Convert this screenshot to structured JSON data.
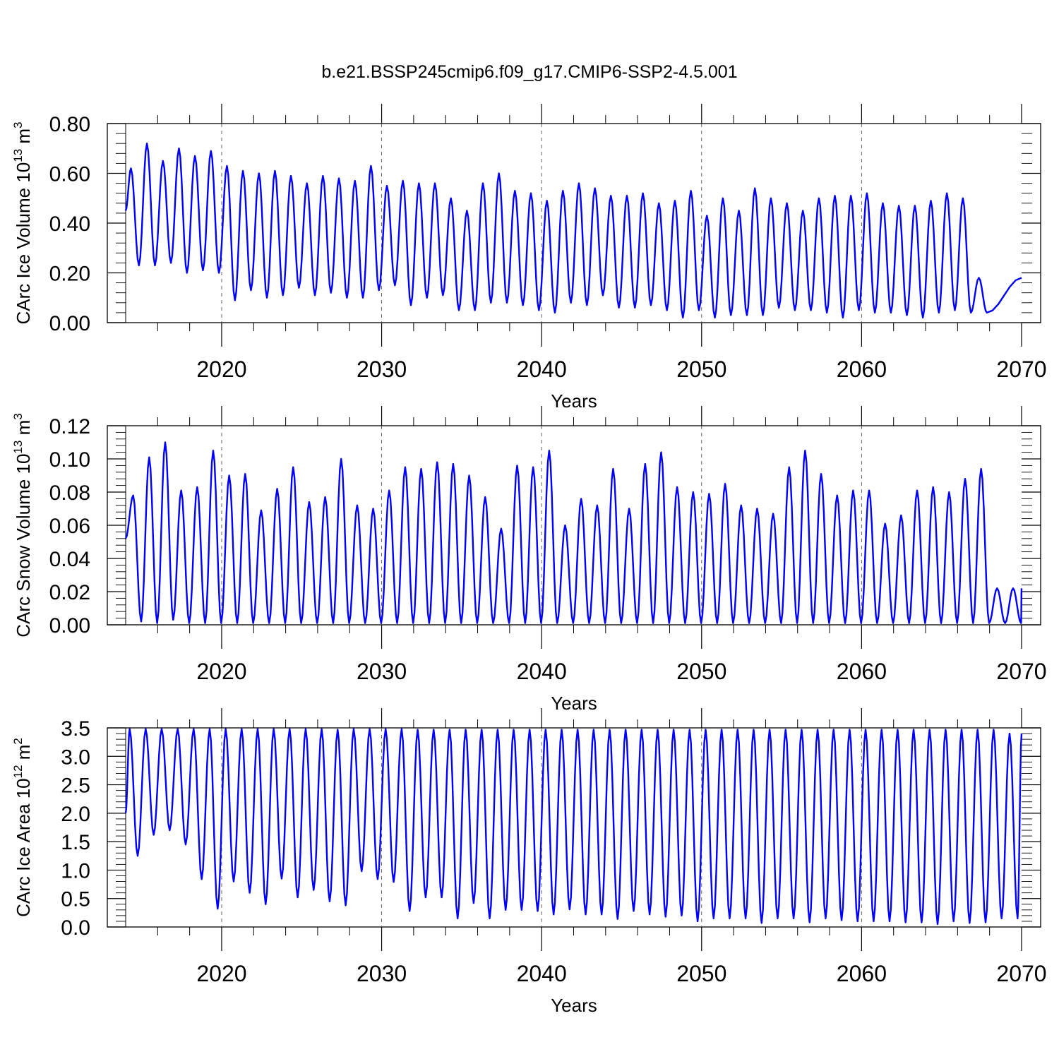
{
  "figure": {
    "title": "b.e21.BSSP245cmip6.f09_g17.CMIP6-SSP2-4.5.001"
  },
  "chart_data": [
    {
      "type": "line",
      "title": "b.e21.BSSP245cmip6.f09_g17.CMIP6-SSP2-4.5.001",
      "xlabel": "Years",
      "ylabel_text": "CArc Ice Volume 10",
      "ylabel_exp": "13",
      "ylabel_unit": " m",
      "ylabel_unit_exp": "3",
      "xlim": [
        2014,
        2070
      ],
      "ylim": [
        0,
        0.8
      ],
      "yticks": [
        0.0,
        0.2,
        0.4,
        0.6,
        0.8
      ],
      "ytick_labels": [
        "0.00",
        "0.20",
        "0.40",
        "0.60",
        "0.80"
      ],
      "xticks": [
        2020,
        2030,
        2040,
        2050,
        2060,
        2070
      ],
      "xtick_labels": [
        "2020",
        "2030",
        "2040",
        "2050",
        "2060",
        "2070"
      ],
      "grid": "vertical dashed at decades",
      "color": "#0000ff",
      "series": [
        {
          "start_x": 2014.0,
          "phase_peak": 0.33,
          "max": [
            0.62,
            0.72,
            0.65,
            0.7,
            0.67,
            0.69,
            0.63,
            0.61,
            0.6,
            0.61,
            0.59,
            0.56,
            0.59,
            0.58,
            0.57,
            0.63,
            0.55,
            0.57,
            0.56,
            0.56,
            0.5,
            0.45,
            0.56,
            0.6,
            0.53,
            0.52,
            0.49,
            0.53,
            0.56,
            0.54,
            0.51,
            0.51,
            0.52,
            0.48,
            0.49,
            0.53,
            0.43,
            0.5,
            0.45,
            0.54,
            0.5,
            0.48,
            0.45,
            0.5,
            0.51,
            0.51,
            0.52,
            0.48,
            0.47,
            0.47,
            0.49,
            0.52,
            0.5,
            0.18
          ],
          "min": [
            0.45,
            0.23,
            0.23,
            0.24,
            0.2,
            0.21,
            0.2,
            0.09,
            0.13,
            0.1,
            0.11,
            0.14,
            0.11,
            0.12,
            0.1,
            0.1,
            0.13,
            0.15,
            0.07,
            0.1,
            0.11,
            0.05,
            0.05,
            0.08,
            0.08,
            0.07,
            0.05,
            0.04,
            0.08,
            0.07,
            0.11,
            0.06,
            0.06,
            0.07,
            0.05,
            0.02,
            0.05,
            0.02,
            0.03,
            0.03,
            0.03,
            0.06,
            0.05,
            0.05,
            0.04,
            0.02,
            0.05,
            0.04,
            0.04,
            0.03,
            0.02,
            0.04,
            0.05,
            0.04
          ]
        }
      ]
    },
    {
      "type": "line",
      "xlabel": "Years",
      "ylabel_text": "CArc Snow Volume 10",
      "ylabel_exp": "13",
      "ylabel_unit": " m",
      "ylabel_unit_exp": "3",
      "xlim": [
        2014,
        2070
      ],
      "ylim": [
        0,
        0.12
      ],
      "yticks": [
        0.0,
        0.02,
        0.04,
        0.06,
        0.08,
        0.1,
        0.12
      ],
      "ytick_labels": [
        "0.00",
        "0.02",
        "0.04",
        "0.06",
        "0.08",
        "0.10",
        "0.12"
      ],
      "xticks": [
        2020,
        2030,
        2040,
        2050,
        2060,
        2070
      ],
      "xtick_labels": [
        "2020",
        "2030",
        "2040",
        "2050",
        "2060",
        "2070"
      ],
      "grid": "vertical dashed at decades",
      "color": "#0000ff",
      "series": [
        {
          "start_x": 2014.0,
          "phase_peak": 0.47,
          "max": [
            0.078,
            0.101,
            0.11,
            0.081,
            0.083,
            0.105,
            0.09,
            0.091,
            0.069,
            0.082,
            0.095,
            0.074,
            0.077,
            0.1,
            0.072,
            0.07,
            0.081,
            0.095,
            0.094,
            0.098,
            0.097,
            0.09,
            0.077,
            0.058,
            0.096,
            0.095,
            0.105,
            0.06,
            0.076,
            0.072,
            0.094,
            0.07,
            0.097,
            0.104,
            0.083,
            0.08,
            0.079,
            0.085,
            0.072,
            0.07,
            0.067,
            0.095,
            0.105,
            0.091,
            0.078,
            0.081,
            0.081,
            0.061,
            0.066,
            0.081,
            0.083,
            0.08,
            0.088,
            0.094,
            0.022
          ],
          "min": [
            0.052,
            0.002,
            0.001,
            0.003,
            0.001,
            0.001,
            0.001,
            0.001,
            0.001,
            0.001,
            0.001,
            0.001,
            0.001,
            0.001,
            0.001,
            0.001,
            0.001,
            0.001,
            0.001,
            0.001,
            0.001,
            0.001,
            0.001,
            0.001,
            0.001,
            0.001,
            0.001,
            0.001,
            0.001,
            0.001,
            0.001,
            0.001,
            0.001,
            0.001,
            0.001,
            0.001,
            0.001,
            0.001,
            0.001,
            0.001,
            0.001,
            0.001,
            0.001,
            0.001,
            0.001,
            0.001,
            0.001,
            0.001,
            0.001,
            0.001,
            0.001,
            0.001,
            0.001,
            0.001,
            0.001,
            0.001
          ]
        }
      ]
    },
    {
      "type": "line",
      "xlabel": "Years",
      "ylabel_text": "CArc Ice Area 10",
      "ylabel_exp": "12",
      "ylabel_unit": " m",
      "ylabel_unit_exp": "2",
      "xlim": [
        2014,
        2070
      ],
      "ylim": [
        0,
        3.5
      ],
      "yticks": [
        0.0,
        0.5,
        1.0,
        1.5,
        2.0,
        2.5,
        3.0,
        3.5
      ],
      "ytick_labels": [
        "0.0",
        "0.5",
        "1.0",
        "1.5",
        "2.0",
        "2.5",
        "3.0",
        "3.5"
      ],
      "xticks": [
        2020,
        2030,
        2040,
        2050,
        2060,
        2070
      ],
      "xtick_labels": [
        "2020",
        "2030",
        "2040",
        "2050",
        "2060",
        "2070"
      ],
      "grid": "vertical dashed at decades",
      "color": "#0000ff",
      "series": [
        {
          "start_x": 2014.0,
          "phase_peak": 0.25,
          "max": [
            3.48,
            3.48,
            3.48,
            3.48,
            3.48,
            3.48,
            3.48,
            3.48,
            3.48,
            3.48,
            3.48,
            3.48,
            3.48,
            3.47,
            3.48,
            3.48,
            3.48,
            3.48,
            3.47,
            3.47,
            3.47,
            3.47,
            3.47,
            3.47,
            3.47,
            3.47,
            3.47,
            3.47,
            3.47,
            3.47,
            3.47,
            3.47,
            3.47,
            3.47,
            3.47,
            3.47,
            3.47,
            3.47,
            3.47,
            3.47,
            3.47,
            3.47,
            3.47,
            3.47,
            3.47,
            3.47,
            3.47,
            3.47,
            3.47,
            3.47,
            3.47,
            3.47,
            3.47,
            3.47,
            3.47,
            3.4
          ],
          "min": [
            2.0,
            1.25,
            1.62,
            1.7,
            1.45,
            0.84,
            0.32,
            0.8,
            0.6,
            0.4,
            0.85,
            0.52,
            0.65,
            0.45,
            0.38,
            0.98,
            0.84,
            0.79,
            0.28,
            0.52,
            0.52,
            0.15,
            0.42,
            0.15,
            0.3,
            0.3,
            0.28,
            0.22,
            0.31,
            0.22,
            0.22,
            0.14,
            0.28,
            0.22,
            0.18,
            0.2,
            0.1,
            0.15,
            0.15,
            0.15,
            0.07,
            0.15,
            0.15,
            0.08,
            0.15,
            0.12,
            0.1,
            0.1,
            0.1,
            0.08,
            0.08,
            0.05,
            0.1,
            0.07,
            0.08,
            0.15
          ]
        }
      ]
    }
  ]
}
